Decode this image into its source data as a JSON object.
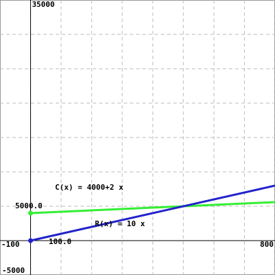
{
  "chart_data": {
    "type": "line",
    "x": [
      0,
      800
    ],
    "series": [
      {
        "name": "C(x) = 4000+2 x",
        "color": "#33ee33",
        "values": [
          4000,
          5600
        ]
      },
      {
        "name": "R(x) = 10 x",
        "color": "#2222cc",
        "values": [
          0,
          8000
        ]
      }
    ],
    "xlim": [
      -100,
      800
    ],
    "ylim": [
      -5000,
      35000
    ],
    "xticks": [
      {
        "value": 100,
        "label": "100.0"
      }
    ],
    "yticks": [
      {
        "value": 5000,
        "label": "5000.0"
      }
    ],
    "grid_x": [
      0,
      100,
      200,
      300,
      400,
      500,
      600,
      700,
      800
    ],
    "grid_y": [
      0,
      5000,
      10000,
      15000,
      20000,
      25000,
      30000
    ],
    "grid": true
  }
}
